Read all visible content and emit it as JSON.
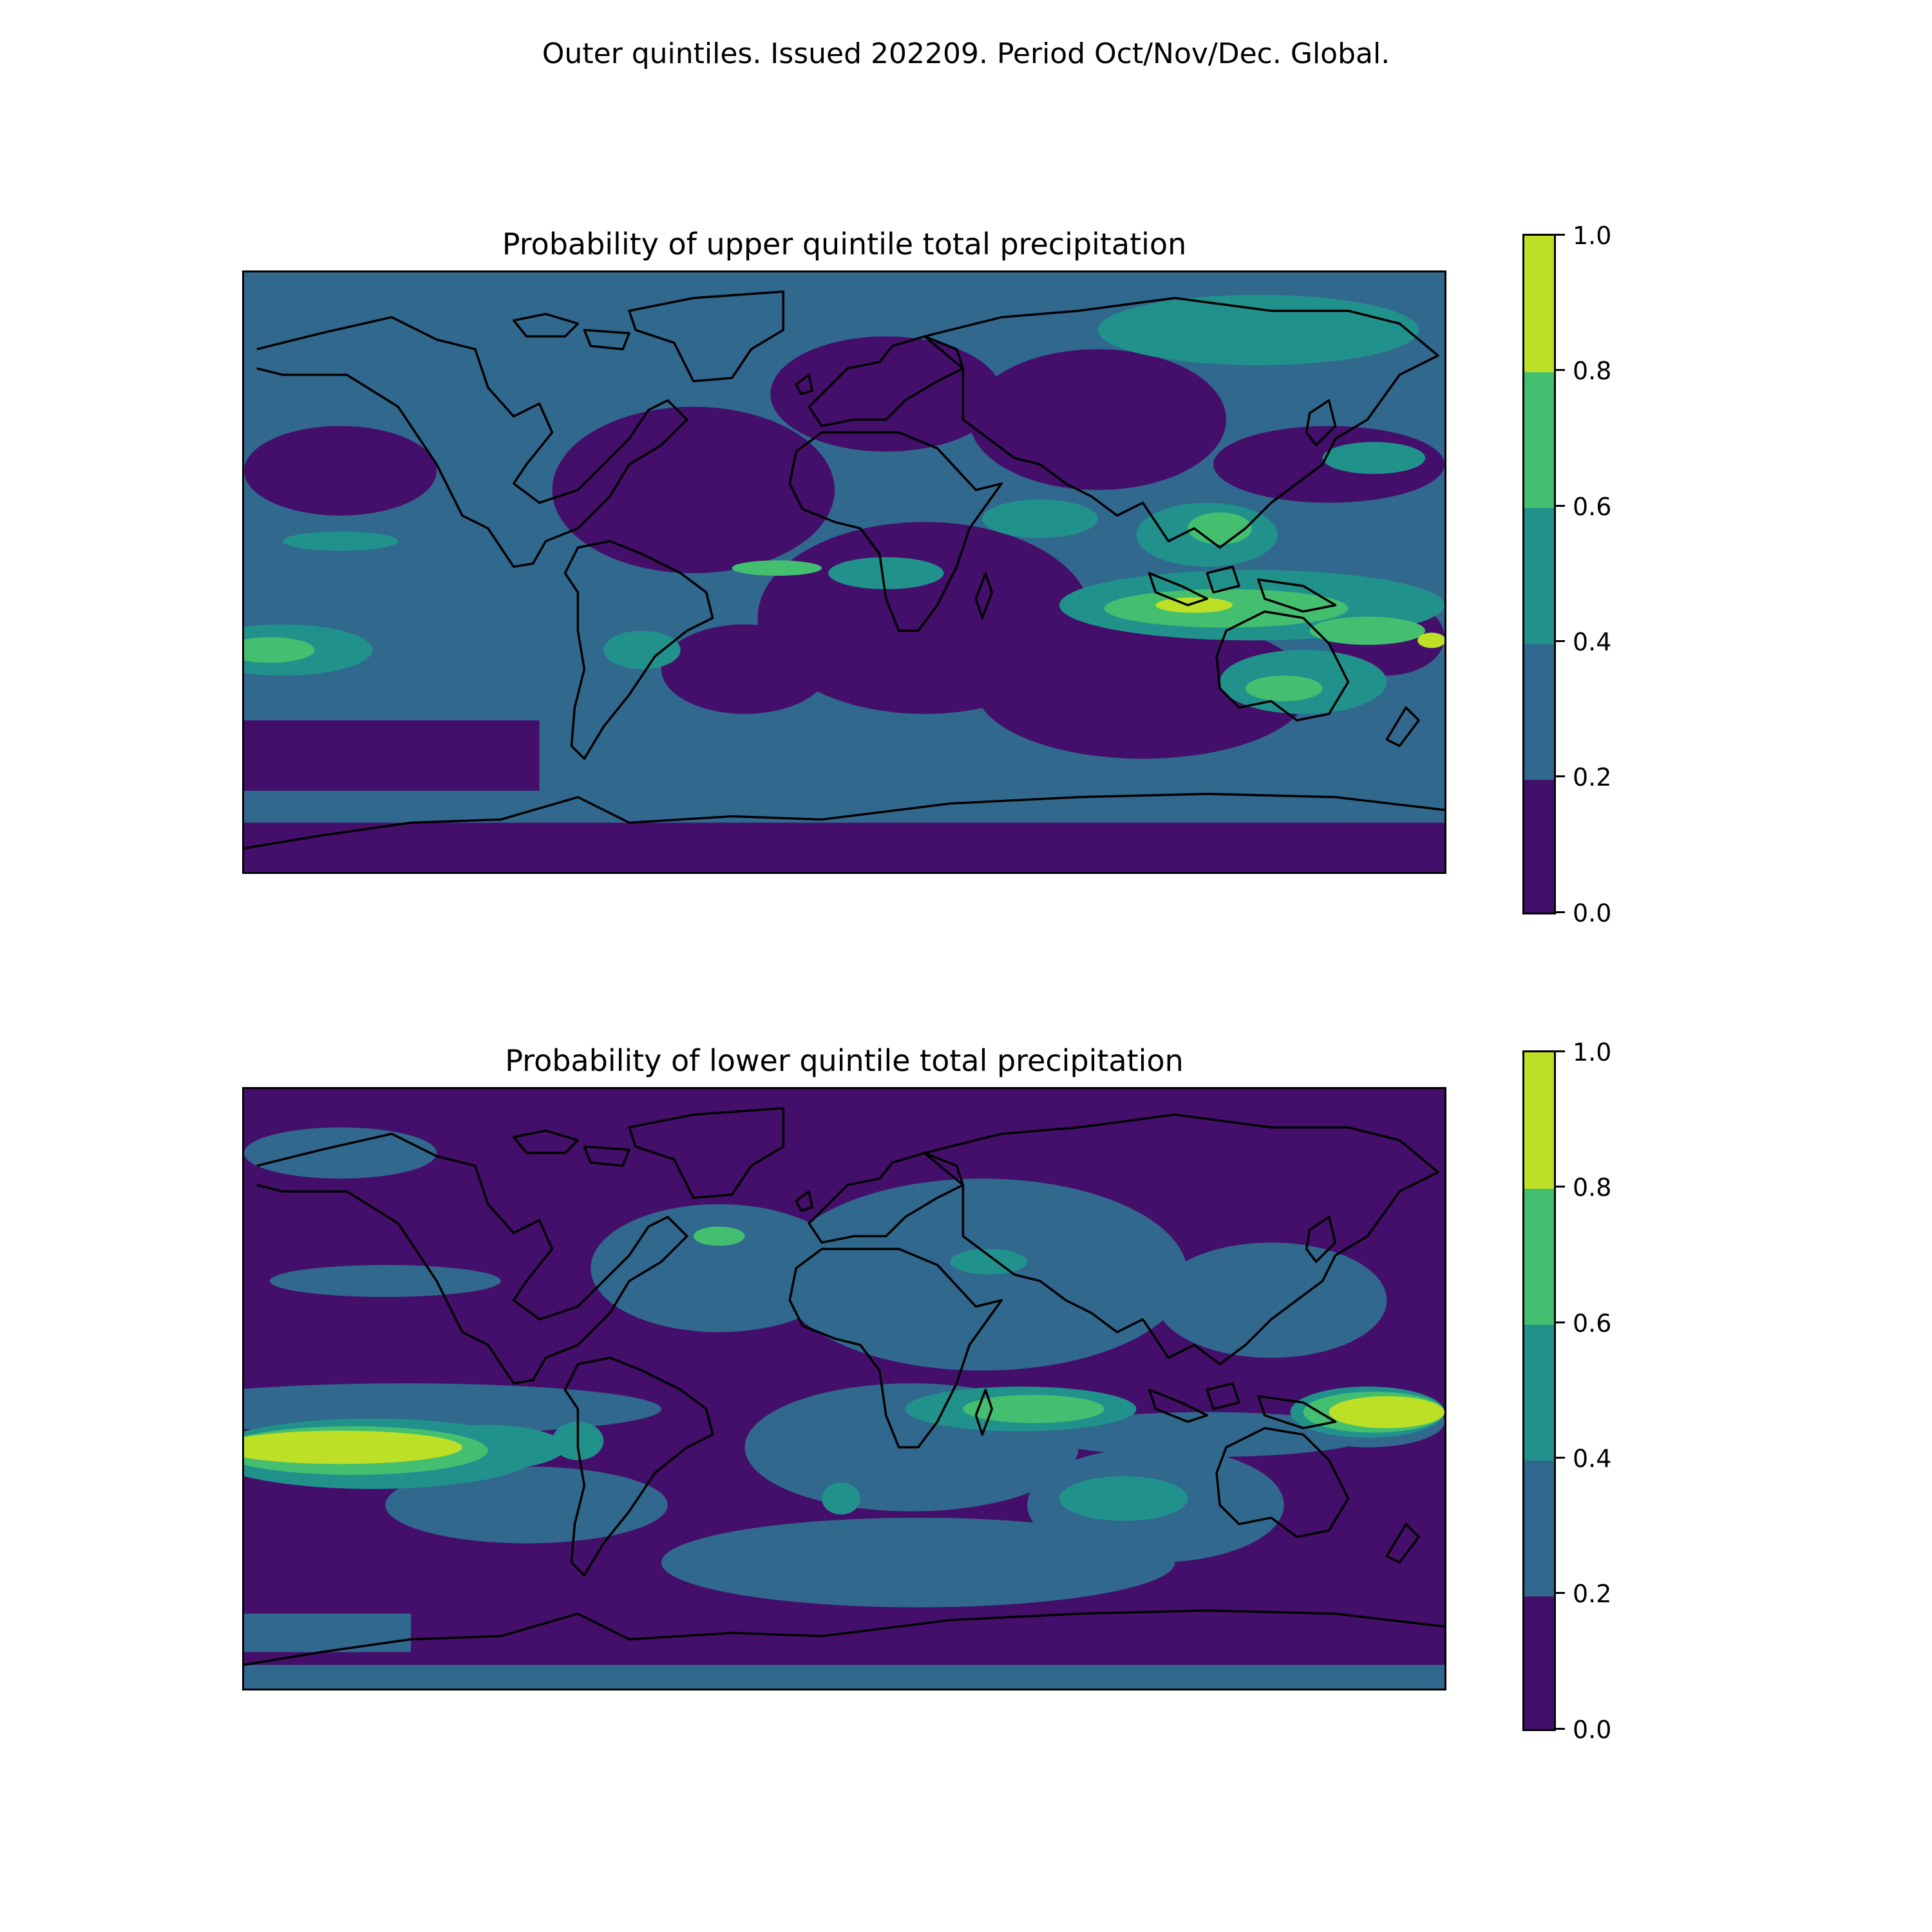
{
  "figure": {
    "suptitle": "Outer quintiles. Issued 202209. Period Oct/Nov/Dec. Global."
  },
  "colorbar": {
    "ticks": [
      "0.0",
      "0.2",
      "0.4",
      "0.6",
      "0.8",
      "1.0"
    ],
    "colors": [
      "#440f6a",
      "#31688e",
      "#21918c",
      "#44bf70",
      "#bddf26"
    ]
  },
  "chart_data": [
    {
      "type": "heatmap",
      "title": "Probability of upper quintile total precipitation",
      "levels": [
        0.0,
        0.2,
        0.4,
        0.6,
        0.8,
        1.0
      ],
      "xlim": [
        -180,
        180
      ],
      "ylim": [
        -90,
        90
      ]
    },
    {
      "type": "heatmap",
      "title": "Probability of lower quintile total precipitation",
      "levels": [
        0.0,
        0.2,
        0.4,
        0.6,
        0.8,
        1.0
      ],
      "xlim": [
        -180,
        180
      ],
      "ylim": [
        -90,
        90
      ]
    }
  ]
}
